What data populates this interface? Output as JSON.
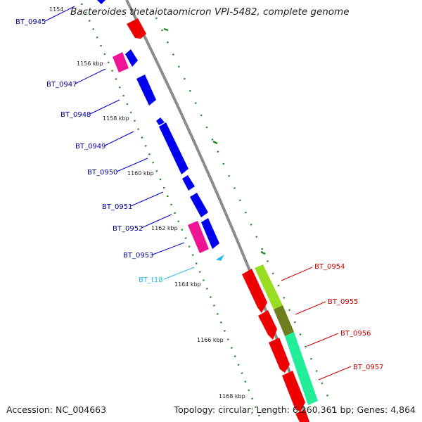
{
  "title": "Bacteroides thetaiotaomicron VPI-5482, complete genome",
  "accession": "Accession: NC_004663",
  "topology": "Topology: circular; Length: 6,260,361 bp; Genes: 4,864",
  "colors": {
    "backbone": "#8c8c8c",
    "gene_blue": "#0000ee",
    "gene_magenta": "#ee1493",
    "gene_red": "#ee0000",
    "trna": "#22bbee",
    "gc_green": "#1e8c1e",
    "gc_lime": "#99dd22",
    "gc_olive": "#6e7d1e",
    "gc_mint": "#22ee99",
    "label_blue": "#000099",
    "label_red": "#cc0000",
    "label_cyan": "#22bbee"
  },
  "ticks": [
    {
      "label": "1154"
    },
    {
      "label": "1156 kbp"
    },
    {
      "label": "1158 kbp"
    },
    {
      "label": "1160 kbp"
    },
    {
      "label": "1162 kbp"
    },
    {
      "label": "1164 kbp"
    },
    {
      "label": "1166 kbp"
    },
    {
      "label": "1168 kbp"
    }
  ],
  "left_labels": [
    "BT_0945",
    "BT_0947",
    "BT_0948",
    "BT_0949",
    "BT_0950",
    "BT_0951",
    "BT_0952",
    "BT_0953",
    "BT_t18"
  ],
  "right_labels": [
    "BT_0954",
    "BT_0955",
    "BT_0956",
    "BT_0957"
  ]
}
